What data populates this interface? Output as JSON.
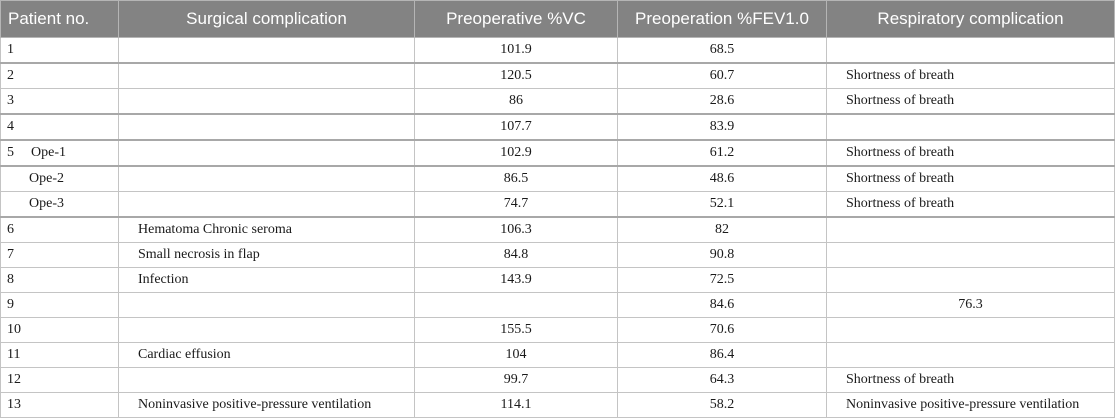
{
  "headers": [
    "Patient no.",
    "Surgical complication",
    "Preoperative %VC",
    "Preoperation %FEV1.0",
    "Respiratory complication"
  ],
  "rows": [
    {
      "patient": "1",
      "surgical": "",
      "vc": "101.9",
      "fev": "68.5",
      "resp": ""
    },
    {
      "patient": "2",
      "surgical": "",
      "vc": "120.5",
      "fev": "60.7",
      "resp": "Shortness of breath"
    },
    {
      "patient": "3",
      "surgical": "",
      "vc": "86",
      "fev": "28.6",
      "resp": "Shortness of breath"
    },
    {
      "patient": "4",
      "surgical": "",
      "vc": "107.7",
      "fev": "83.9",
      "resp": ""
    },
    {
      "patient": "5",
      "sub": "Ope-1",
      "surgical": "",
      "vc": "102.9",
      "fev": "61.2",
      "resp": "Shortness of breath"
    },
    {
      "patient": "",
      "sub": "Ope-2",
      "surgical": "",
      "vc": "86.5",
      "fev": "48.6",
      "resp": "Shortness of breath"
    },
    {
      "patient": "",
      "sub": "Ope-3",
      "surgical": "",
      "vc": "74.7",
      "fev": "52.1",
      "resp": "Shortness of breath"
    },
    {
      "patient": "6",
      "surgical": "Hematoma Chronic seroma",
      "vc": "106.3",
      "fev": "82",
      "resp": ""
    },
    {
      "patient": "7",
      "surgical": "Small necrosis in flap",
      "vc": "84.8",
      "fev": "90.8",
      "resp": ""
    },
    {
      "patient": "8",
      "surgical": "Infection",
      "vc": "143.9",
      "fev": "72.5",
      "resp": ""
    },
    {
      "patient": "9",
      "surgical": "",
      "vc": "",
      "fev": "84.6",
      "resp": "76.3"
    },
    {
      "patient": "10",
      "surgical": "",
      "vc": "155.5",
      "fev": "70.6",
      "resp": ""
    },
    {
      "patient": "11",
      "surgical": "Cardiac effusion",
      "vc": "104",
      "fev": "86.4",
      "resp": ""
    },
    {
      "patient": "12",
      "surgical": "",
      "vc": "99.7",
      "fev": "64.3",
      "resp": "Shortness of breath"
    },
    {
      "patient": "13",
      "surgical": "Noninvasive positive-pressure ventilation",
      "vc": "114.1",
      "fev": "58.2",
      "resp": "Noninvasive positive-pressure ventilation"
    }
  ]
}
